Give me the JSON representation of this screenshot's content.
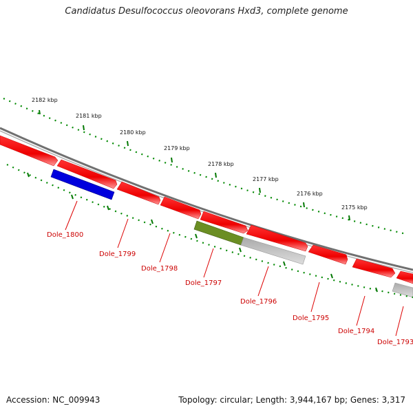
{
  "title": "Candidatus Desulfococcus oleovorans Hxd3, complete genome",
  "footer": {
    "accession": "Accession: NC_009943",
    "summary": "Topology: circular; Length: 3,944,167 bp; Genes: 3,317"
  },
  "scale_labels": [
    "2182 kbp",
    "2181 kbp",
    "2180 kbp",
    "2179 kbp",
    "2178 kbp",
    "2177 kbp",
    "2176 kbp",
    "2175 kbp"
  ],
  "genes": [
    {
      "name": "Dole_1800"
    },
    {
      "name": "Dole_1799"
    },
    {
      "name": "Dole_1798"
    },
    {
      "name": "Dole_1797"
    },
    {
      "name": "Dole_1796"
    },
    {
      "name": "Dole_1795"
    },
    {
      "name": "Dole_1794"
    },
    {
      "name": "Dole_1793"
    }
  ],
  "colors": {
    "forward_gene": "#ee0000",
    "blue_feature": "#0000dd",
    "olive_feature": "#6b8e23",
    "grey_feature": "#bbbbbb",
    "backbone": "#808080",
    "ticks": "#007700",
    "label": "#cc0000"
  }
}
